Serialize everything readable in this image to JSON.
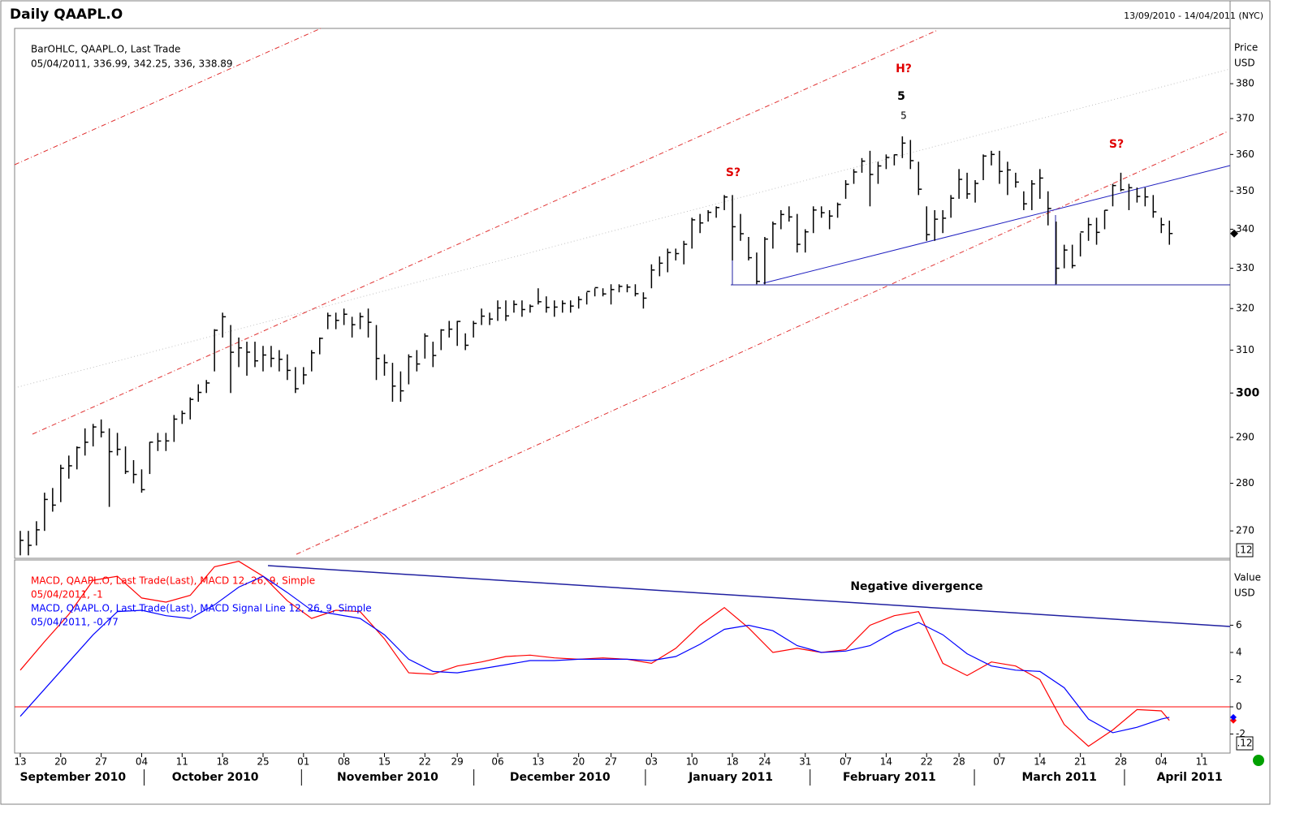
{
  "header": {
    "title": "Daily QAAPL.O",
    "range": "13/09/2010 - 14/04/2011 (NYC)"
  },
  "chart_data": [
    {
      "type": "ohlc",
      "axis_title": [
        "Price",
        "USD"
      ],
      "corner_label": ".12",
      "legend_lines": [
        "BarOHLC, QAAPL.O, Last Trade",
        "05/04/2011, 336.99, 342.25, 336, 338.89"
      ],
      "color": "#000000",
      "log_scale": true,
      "xlim": [
        -0.7,
        149.5
      ],
      "ylim": [
        264.4,
        396.4
      ],
      "yticks": [
        270,
        280,
        290,
        300,
        310,
        320,
        330,
        340,
        350,
        360,
        370,
        380
      ],
      "annotations": [
        "S?",
        "H?",
        "5",
        "5",
        "S?"
      ],
      "high": [
        270,
        270,
        272,
        278,
        279,
        284,
        286,
        288,
        292,
        293,
        294,
        292,
        291,
        288,
        285,
        283,
        289,
        291,
        291,
        295,
        296,
        299,
        302,
        303,
        315,
        319,
        316,
        313,
        312,
        312,
        311,
        311,
        310,
        309,
        306,
        306,
        310,
        313,
        319,
        319,
        320,
        318,
        319,
        320,
        316,
        309,
        307,
        305,
        309,
        310,
        314,
        312,
        315,
        317,
        317,
        314,
        317,
        320,
        319,
        322,
        322,
        322,
        322,
        321,
        325,
        323,
        322,
        322,
        322,
        323,
        324,
        325,
        325,
        326,
        326,
        326,
        326,
        324,
        331,
        333,
        335,
        335,
        337,
        343,
        344,
        345,
        346,
        349,
        349,
        344,
        338,
        334,
        338,
        342,
        345,
        346,
        344,
        340,
        346,
        346,
        345,
        347,
        353,
        356,
        359,
        361,
        358,
        360,
        360,
        365,
        364,
        358,
        346,
        345,
        345,
        349,
        356,
        355,
        353,
        360,
        361,
        361,
        358,
        355,
        350,
        353,
        356,
        350,
        342,
        336,
        336,
        339,
        343,
        343,
        345,
        352,
        355,
        352,
        351,
        351,
        349,
        343,
        342.25
      ],
      "low": [
        265,
        265,
        267,
        270,
        274,
        276,
        281,
        283,
        286,
        288,
        290,
        275,
        286,
        282,
        280,
        278,
        282,
        287,
        287,
        289,
        293,
        294,
        298,
        300,
        305,
        313,
        300,
        306,
        304,
        306,
        305,
        306,
        305,
        303,
        300,
        302,
        305,
        309,
        315,
        315,
        316,
        313,
        315,
        313,
        303,
        304,
        298,
        298,
        302,
        305,
        308,
        306,
        310,
        313,
        311,
        310,
        313,
        316,
        316,
        317,
        317,
        319,
        318,
        319,
        321,
        319,
        318,
        319,
        319,
        320,
        321,
        323,
        323,
        321,
        324,
        324,
        323,
        320,
        325,
        328,
        329,
        332,
        331,
        335,
        339,
        342,
        343,
        345,
        332,
        337,
        332,
        326,
        326,
        335,
        340,
        342,
        334,
        334,
        339,
        343,
        340,
        343,
        348,
        352,
        355,
        346,
        352,
        356,
        357,
        359,
        356,
        349,
        337,
        337,
        339,
        343,
        348,
        348,
        347,
        353,
        357,
        352,
        349,
        351,
        345,
        345,
        348,
        341,
        326,
        330,
        330,
        333,
        337,
        336,
        340,
        346,
        350,
        345,
        347,
        346,
        343,
        339,
        336
      ],
      "close": [
        268.06,
        267.04,
        270.22,
        276.57,
        275.37,
        283.23,
        283.77,
        287.75,
        288.92,
        292.32,
        291.16,
        286.86,
        287.37,
        282.52,
        281.9,
        278.64,
        288.94,
        289.19,
        289.22,
        294.07,
        295.36,
        298.54,
        300.14,
        302.31,
        314.74,
        318,
        309.49,
        310.53,
        309.52,
        307.47,
        308.84,
        308.05,
        307.83,
        305.24,
        300.98,
        304.18,
        309.36,
        312.8,
        318.27,
        317.13,
        318.62,
        316.08,
        318.03,
        316.66,
        308.03,
        307.04,
        301.59,
        300.5,
        308.43,
        306.73,
        313.36,
        308.73,
        314.8,
        315,
        316.87,
        311.15,
        316.4,
        318.15,
        317.44,
        320.15,
        318.21,
        321.01,
        319.76,
        320.56,
        321.67,
        320.29,
        320.36,
        321.25,
        320.61,
        322.21,
        324.2,
        325.16,
        323.6,
        324.68,
        325.47,
        325.29,
        323.66,
        322.56,
        329.57,
        331.29,
        334,
        333.73,
        336.12,
        342.45,
        341.64,
        344.42,
        345.68,
        348.48,
        340.65,
        338.84,
        332.68,
        326.72,
        337.45,
        341.4,
        343.85,
        343.21,
        336.1,
        339.32,
        345.03,
        344.32,
        343.44,
        346.5,
        351.88,
        355.2,
        358.16,
        354.54,
        356.85,
        359.18,
        359.9,
        363.13,
        358.3,
        350.56,
        338.61,
        342.62,
        342.88,
        348.16,
        353.21,
        349.31,
        352.12,
        359.56,
        360,
        355.36,
        355.76,
        352.47,
        346.67,
        351.99,
        353.56,
        345.43,
        330.01,
        334.64,
        330.67,
        339.3,
        341.2,
        339.19,
        344.97,
        351.54,
        350.44,
        350.96,
        348.63,
        348.51,
        344.56,
        341.19,
        338.89
      ]
    },
    {
      "type": "line",
      "axis_title": [
        "Value",
        "USD"
      ],
      "corner_label": ".12",
      "annotation": "Negative divergence",
      "xlim": [
        -0.7,
        149.5
      ],
      "ylim": [
        -3.4,
        10.8
      ],
      "yticks": [
        -2,
        0,
        2,
        4,
        6
      ],
      "hline": 0,
      "x": [
        0,
        3,
        6,
        9,
        12,
        15,
        18,
        21,
        24,
        27,
        30,
        33,
        36,
        39,
        42,
        45,
        48,
        51,
        54,
        57,
        60,
        63,
        66,
        69,
        72,
        75,
        78,
        81,
        84,
        87,
        90,
        93,
        96,
        99,
        102,
        105,
        108,
        111,
        114,
        117,
        120,
        123,
        126,
        129,
        132,
        135,
        138,
        141,
        142
      ],
      "series": [
        {
          "name": "MACD, QAAPL.O, Last Trade(Last), MACD 12, 26, 9, Simple",
          "value_label": "05/04/2011, -1",
          "color": "#ff0000",
          "values": [
            2.7,
            4.8,
            6.8,
            9.3,
            9.6,
            8.0,
            7.7,
            8.2,
            10.3,
            10.7,
            9.6,
            7.8,
            6.5,
            7.1,
            7.0,
            5.0,
            2.5,
            2.4,
            3.0,
            3.3,
            3.7,
            3.8,
            3.6,
            3.5,
            3.6,
            3.5,
            3.2,
            4.3,
            6.0,
            7.3,
            5.8,
            4.0,
            4.3,
            4.0,
            4.2,
            6.0,
            6.7,
            7.0,
            3.2,
            2.3,
            3.3,
            3.0,
            2.0,
            -1.3,
            -2.9,
            -1.7,
            -0.2,
            -0.3,
            -1
          ]
        },
        {
          "name": "MACD, QAAPL.O, Last Trade(Last), MACD Signal Line 12, 26, 9, Simple",
          "value_label": "05/04/2011, -0.77",
          "color": "#0000ff",
          "values": [
            -0.7,
            1.3,
            3.3,
            5.3,
            7.0,
            7.1,
            6.7,
            6.5,
            7.5,
            8.8,
            9.6,
            8.4,
            7.1,
            6.8,
            6.5,
            5.3,
            3.5,
            2.6,
            2.5,
            2.8,
            3.1,
            3.4,
            3.4,
            3.5,
            3.5,
            3.5,
            3.4,
            3.7,
            4.6,
            5.7,
            6.0,
            5.6,
            4.5,
            4.0,
            4.1,
            4.5,
            5.5,
            6.2,
            5.3,
            3.9,
            3.0,
            2.7,
            2.6,
            1.4,
            -0.9,
            -1.9,
            -1.5,
            -0.9,
            -0.77
          ]
        }
      ],
      "xticks": [
        {
          "value": 0,
          "label": "13"
        },
        {
          "value": 5,
          "label": "20"
        },
        {
          "value": 10,
          "label": "27"
        },
        {
          "value": 15,
          "label": "04"
        },
        {
          "value": 20,
          "label": "11"
        },
        {
          "value": 25,
          "label": "18"
        },
        {
          "value": 30,
          "label": "25"
        },
        {
          "value": 35,
          "label": "01"
        },
        {
          "value": 40,
          "label": "08"
        },
        {
          "value": 45,
          "label": "15"
        },
        {
          "value": 50,
          "label": "22"
        },
        {
          "value": 54,
          "label": "29"
        },
        {
          "value": 59,
          "label": "06"
        },
        {
          "value": 64,
          "label": "13"
        },
        {
          "value": 69,
          "label": "20"
        },
        {
          "value": 73,
          "label": "27"
        },
        {
          "value": 78,
          "label": "03"
        },
        {
          "value": 83,
          "label": "10"
        },
        {
          "value": 88,
          "label": "18"
        },
        {
          "value": 92,
          "label": "24"
        },
        {
          "value": 97,
          "label": "31"
        },
        {
          "value": 102,
          "label": "07"
        },
        {
          "value": 107,
          "label": "14"
        },
        {
          "value": 112,
          "label": "22"
        },
        {
          "value": 116,
          "label": "28"
        },
        {
          "value": 121,
          "label": "07"
        },
        {
          "value": 126,
          "label": "14"
        },
        {
          "value": 131,
          "label": "21"
        },
        {
          "value": 136,
          "label": "28"
        },
        {
          "value": 141,
          "label": "04"
        },
        {
          "value": 146,
          "label": "11"
        }
      ],
      "month_labels": [
        {
          "value": 6.5,
          "label": "September 2010"
        },
        {
          "value": 24.1,
          "label": "October 2010"
        },
        {
          "value": 45.4,
          "label": "November 2010"
        },
        {
          "value": 66.7,
          "label": "December 2010"
        },
        {
          "value": 87.8,
          "label": "January 2011"
        },
        {
          "value": 107.4,
          "label": "February 2011"
        },
        {
          "value": 128.4,
          "label": "March 2011"
        },
        {
          "value": 144.5,
          "label": "April 2011"
        }
      ]
    }
  ]
}
